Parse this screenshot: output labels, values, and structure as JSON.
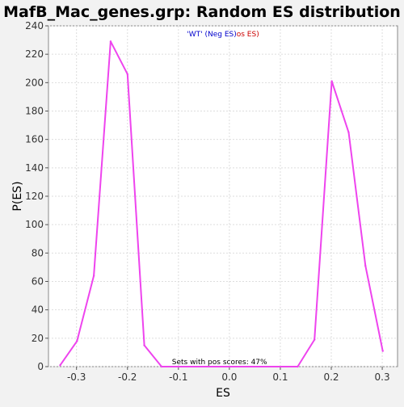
{
  "chart_data": {
    "type": "line",
    "title": "MafB_Mac_genes.grp: Random ES distribution",
    "xlabel": "ES",
    "ylabel": "P(ES)",
    "xlim": [
      -0.355,
      0.33
    ],
    "ylim": [
      0,
      240
    ],
    "x_ticks": [
      -0.3,
      -0.2,
      -0.1,
      0.0,
      0.1,
      0.2,
      0.3
    ],
    "x_tick_labels": [
      "-0.3",
      "-0.2",
      "-0.1",
      "0.0",
      "0.1",
      "0.2",
      "0.3"
    ],
    "y_ticks": [
      0,
      20,
      40,
      60,
      80,
      100,
      120,
      140,
      160,
      180,
      200,
      220,
      240
    ],
    "y_tick_labels": [
      "0",
      "20",
      "40",
      "60",
      "80",
      "100",
      "120",
      "140",
      "160",
      "180",
      "200",
      "220",
      "240"
    ],
    "grid": true,
    "legend": {
      "placement": "top-center",
      "part1": "'WT' (Neg ES)",
      "part1_color": "#0000cc",
      "part2": "os ES)",
      "part2_color": "#cc0000"
    },
    "annotation": "Sets with pos scores: 47%",
    "series": [
      {
        "color": "#ee44ee",
        "points": [
          [
            -0.332,
            1
          ],
          [
            -0.299,
            18
          ],
          [
            -0.266,
            64
          ],
          [
            -0.233,
            229
          ],
          [
            -0.2,
            206
          ],
          [
            -0.167,
            15
          ],
          [
            -0.133,
            0
          ],
          [
            -0.1,
            0
          ],
          [
            0.134,
            0
          ],
          [
            0.167,
            19
          ],
          [
            0.201,
            201
          ],
          [
            0.234,
            165
          ],
          [
            0.267,
            71
          ],
          [
            0.301,
            11
          ]
        ]
      }
    ]
  }
}
